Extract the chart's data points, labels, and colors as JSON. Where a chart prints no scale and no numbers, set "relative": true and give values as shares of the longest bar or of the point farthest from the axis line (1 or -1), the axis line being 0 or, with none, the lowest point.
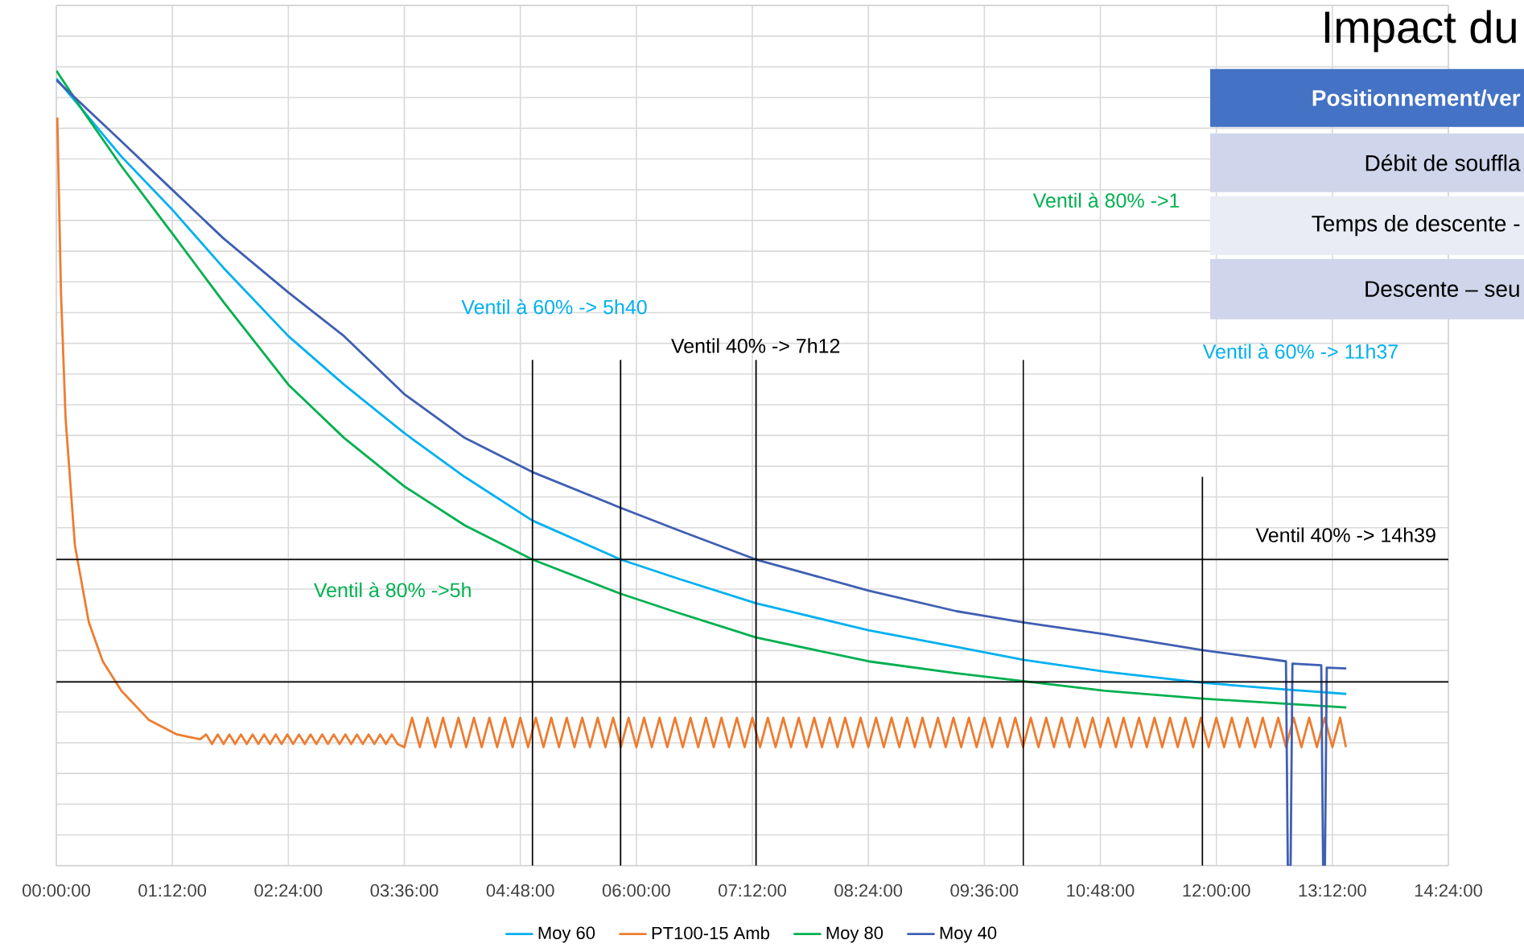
{
  "chart_data": {
    "type": "line",
    "title": "Impact du",
    "relative": true,
    "grid": true,
    "legend": "bottom",
    "xlim": [
      0,
      14.4
    ],
    "xticks": [
      {
        "value": 0,
        "label": "00:00:00"
      },
      {
        "value": 1.2,
        "label": "01:12:00"
      },
      {
        "value": 2.4,
        "label": "02:24:00"
      },
      {
        "value": 3.6,
        "label": "03:36:00"
      },
      {
        "value": 4.8,
        "label": "04:48:00"
      },
      {
        "value": 6,
        "label": "06:00:00"
      },
      {
        "value": 7.2,
        "label": "07:12:00"
      },
      {
        "value": 8.4,
        "label": "08:24:00"
      },
      {
        "value": 9.6,
        "label": "09:36:00"
      },
      {
        "value": 10.8,
        "label": "10:48:00"
      },
      {
        "value": 12,
        "label": "12:00:00"
      },
      {
        "value": 13.2,
        "label": "13:12:00"
      },
      {
        "value": 14.4,
        "label": "14:24:00"
      }
    ],
    "ref_lines": [
      {
        "axis": "x",
        "value": 4.925,
        "color": "#000000"
      },
      {
        "axis": "x",
        "value": 5.837,
        "color": "#000000"
      },
      {
        "axis": "x",
        "value": 7.238,
        "color": "#000000"
      },
      {
        "axis": "x",
        "value": 10.003,
        "color": "#000000"
      },
      {
        "axis": "x",
        "value": 11.856,
        "color": "#000000"
      },
      {
        "axis": "y",
        "value": 0.385,
        "color": "#000000"
      },
      {
        "axis": "y",
        "value": 0.231,
        "color": "#000000"
      }
    ],
    "annotations": [
      "Ventil à 60% -> 5h40",
      "Ventil 40% -> 7h12",
      "Ventil à 80% ->5h",
      "Ventil à 80% ->1",
      "Ventil à 60% -> 11h37",
      "Ventil 40% -> 14h39",
      "Positionnement/ver",
      "Débit de souffla",
      "Temps de descente -",
      "Descente – seu"
    ],
    "series": [
      {
        "name": "Moy 60",
        "color": "#00b0f0",
        "x": [
          0,
          0.672,
          1.2,
          1.728,
          2.4,
          2.976,
          3.6,
          4.224,
          4.925,
          5.837,
          6.432,
          7.238,
          8.4,
          9.312,
          10.003,
          10.848,
          11.856,
          12.672,
          13.344
        ],
        "values": [
          0.99,
          0.892,
          0.825,
          0.752,
          0.666,
          0.605,
          0.544,
          0.489,
          0.434,
          0.385,
          0.361,
          0.33,
          0.296,
          0.275,
          0.259,
          0.244,
          0.23,
          0.222,
          0.216
        ]
      },
      {
        "name": "PT100-15 Amb",
        "color": "#ed7d31",
        "x": [
          0.01,
          0.048,
          0.096,
          0.192,
          0.336,
          0.48,
          0.672,
          0.96,
          1.248,
          1.488,
          1.55,
          1.61,
          1.67,
          1.73,
          1.79,
          1.85,
          1.91,
          1.97,
          2.03,
          2.09,
          2.15,
          2.21,
          2.27,
          2.33,
          2.39,
          2.45,
          2.51,
          2.57,
          2.63,
          2.69,
          2.75,
          2.81,
          2.87,
          2.93,
          2.99,
          3.05,
          3.11,
          3.17,
          3.23,
          3.29,
          3.35,
          3.41,
          3.47,
          3.53,
          3.6,
          3.68,
          3.76,
          3.84,
          3.92,
          4.0,
          4.08,
          4.16,
          4.24,
          4.32,
          4.4,
          4.48,
          4.56,
          4.64,
          4.72,
          4.8,
          4.88,
          4.96,
          5.04,
          5.12,
          5.2,
          5.28,
          5.36,
          5.44,
          5.52,
          5.6,
          5.68,
          5.76,
          5.84,
          5.92,
          6.0,
          6.08,
          6.16,
          6.24,
          6.32,
          6.4,
          6.48,
          6.56,
          6.64,
          6.72,
          6.8,
          6.88,
          6.96,
          7.04,
          7.12,
          7.2,
          7.28,
          7.36,
          7.44,
          7.52,
          7.6,
          7.68,
          7.76,
          7.84,
          7.92,
          8.0,
          8.08,
          8.16,
          8.24,
          8.32,
          8.4,
          8.48,
          8.56,
          8.64,
          8.72,
          8.8,
          8.88,
          8.96,
          9.04,
          9.12,
          9.2,
          9.28,
          9.36,
          9.44,
          9.52,
          9.6,
          9.68,
          9.76,
          9.84,
          9.92,
          10.0,
          10.08,
          10.16,
          10.24,
          10.32,
          10.4,
          10.48,
          10.56,
          10.64,
          10.72,
          10.8,
          10.88,
          10.96,
          11.04,
          11.12,
          11.2,
          11.28,
          11.36,
          11.44,
          11.52,
          11.6,
          11.68,
          11.76,
          11.84,
          11.92,
          12.0,
          12.08,
          12.16,
          12.24,
          12.32,
          12.4,
          12.48,
          12.56,
          12.64,
          12.72,
          12.8,
          12.88,
          12.96,
          13.04,
          13.12,
          13.2,
          13.28,
          13.34
        ],
        "values": [
          0.941,
          0.721,
          0.562,
          0.403,
          0.306,
          0.257,
          0.22,
          0.183,
          0.165,
          0.159,
          0.165,
          0.153,
          0.165,
          0.153,
          0.165,
          0.153,
          0.165,
          0.153,
          0.165,
          0.153,
          0.165,
          0.153,
          0.165,
          0.153,
          0.165,
          0.153,
          0.165,
          0.153,
          0.165,
          0.153,
          0.165,
          0.153,
          0.165,
          0.153,
          0.165,
          0.153,
          0.165,
          0.153,
          0.165,
          0.153,
          0.165,
          0.153,
          0.165,
          0.153,
          0.149,
          0.186,
          0.149,
          0.186,
          0.149,
          0.186,
          0.149,
          0.186,
          0.149,
          0.186,
          0.149,
          0.186,
          0.149,
          0.186,
          0.149,
          0.186,
          0.149,
          0.186,
          0.149,
          0.186,
          0.149,
          0.186,
          0.149,
          0.186,
          0.149,
          0.186,
          0.149,
          0.186,
          0.149,
          0.186,
          0.149,
          0.186,
          0.149,
          0.186,
          0.149,
          0.186,
          0.149,
          0.186,
          0.149,
          0.186,
          0.149,
          0.186,
          0.149,
          0.186,
          0.149,
          0.186,
          0.149,
          0.186,
          0.149,
          0.186,
          0.149,
          0.186,
          0.149,
          0.186,
          0.149,
          0.186,
          0.149,
          0.186,
          0.149,
          0.186,
          0.149,
          0.186,
          0.149,
          0.186,
          0.149,
          0.186,
          0.149,
          0.186,
          0.149,
          0.186,
          0.149,
          0.186,
          0.149,
          0.186,
          0.149,
          0.186,
          0.149,
          0.186,
          0.149,
          0.186,
          0.149,
          0.186,
          0.149,
          0.186,
          0.149,
          0.186,
          0.149,
          0.186,
          0.149,
          0.186,
          0.149,
          0.186,
          0.149,
          0.186,
          0.149,
          0.186,
          0.149,
          0.186,
          0.149,
          0.186,
          0.149,
          0.186,
          0.149,
          0.186,
          0.149,
          0.186,
          0.149,
          0.186,
          0.149,
          0.186,
          0.149,
          0.186,
          0.149,
          0.186,
          0.149,
          0.186,
          0.149,
          0.186,
          0.149,
          0.186,
          0.149,
          0.186,
          0.149
        ]
      },
      {
        "name": "Moy 80",
        "color": "#00b050",
        "x": [
          0,
          0.288,
          0.672,
          1.2,
          1.728,
          2.4,
          2.976,
          3.6,
          4.224,
          4.925,
          5.837,
          6.432,
          7.238,
          8.4,
          9.312,
          10.003,
          10.848,
          11.856,
          12.672,
          13.344
        ],
        "values": [
          1.0,
          0.947,
          0.88,
          0.795,
          0.709,
          0.605,
          0.538,
          0.477,
          0.428,
          0.385,
          0.342,
          0.318,
          0.287,
          0.257,
          0.242,
          0.232,
          0.22,
          0.21,
          0.204,
          0.199
        ]
      },
      {
        "name": "Moy 40",
        "color": "#3f5fb2",
        "x": [
          0,
          0.672,
          1.2,
          1.728,
          2.4,
          2.976,
          3.6,
          4.224,
          4.925,
          5.837,
          6.432,
          7.238,
          8.4,
          9.312,
          10.003,
          10.848,
          11.856,
          12.72,
          12.739,
          12.768,
          12.787,
          13.085,
          13.104,
          13.123,
          13.142,
          13.344
        ],
        "values": [
          0.988,
          0.911,
          0.85,
          0.789,
          0.721,
          0.666,
          0.593,
          0.538,
          0.495,
          0.45,
          0.422,
          0.385,
          0.346,
          0.32,
          0.306,
          0.291,
          0.271,
          0.257,
          0,
          0,
          0.254,
          0.252,
          0,
          0,
          0.249,
          0.248
        ]
      }
    ]
  }
}
